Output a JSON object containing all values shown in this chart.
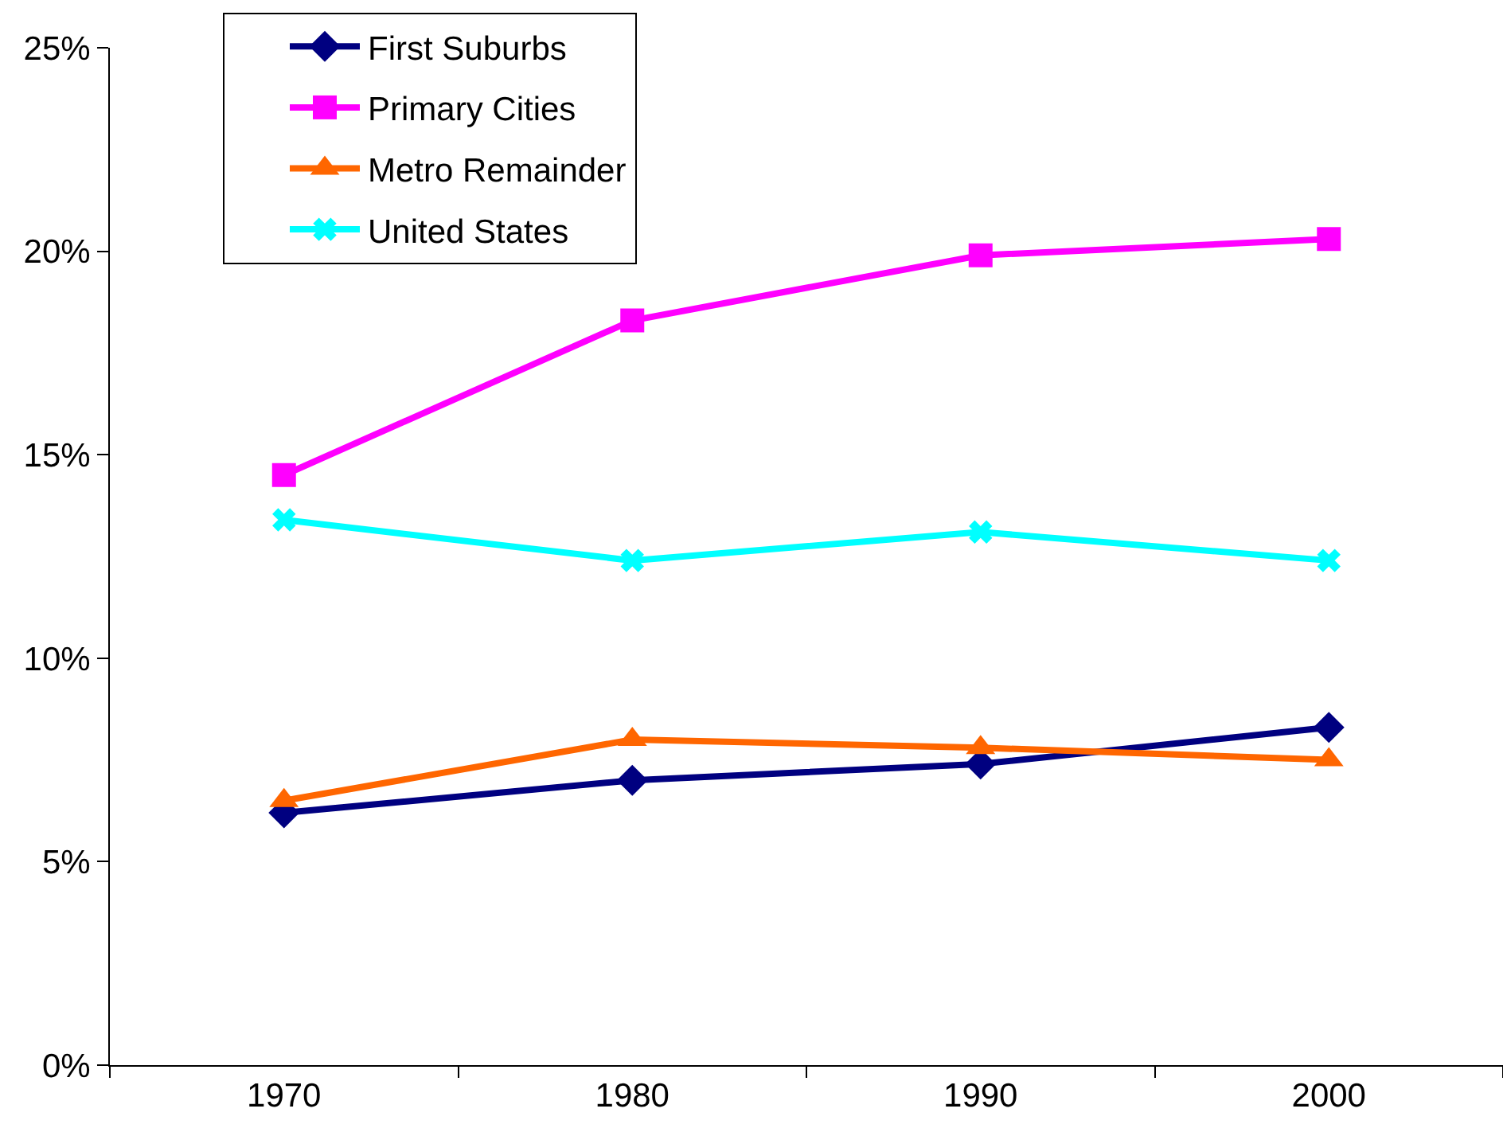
{
  "chart_data": {
    "type": "line",
    "categories": [
      "1970",
      "1980",
      "1990",
      "2000"
    ],
    "series": [
      {
        "name": "First Suburbs",
        "color": "#000080",
        "marker": "diamond",
        "values": [
          6.2,
          7.0,
          7.4,
          8.3
        ]
      },
      {
        "name": "Primary Cities",
        "color": "#ff00ff",
        "marker": "square",
        "values": [
          14.5,
          18.3,
          19.9,
          20.3
        ]
      },
      {
        "name": "Metro Remainder",
        "color": "#ff6600",
        "marker": "triangle",
        "values": [
          6.5,
          8.0,
          7.8,
          7.5
        ]
      },
      {
        "name": "United States",
        "color": "#00ffff",
        "marker": "cross",
        "values": [
          13.4,
          12.4,
          13.1,
          12.4
        ]
      }
    ],
    "ylim": [
      0,
      25
    ],
    "yticks": [
      {
        "value": 0,
        "label": "0%"
      },
      {
        "value": 5,
        "label": "5%"
      },
      {
        "value": 10,
        "label": "10%"
      },
      {
        "value": 15,
        "label": "15%"
      },
      {
        "value": 20,
        "label": "20%"
      },
      {
        "value": 25,
        "label": "25%"
      }
    ],
    "grid": false,
    "legend": "top left",
    "line_style": "solid"
  }
}
